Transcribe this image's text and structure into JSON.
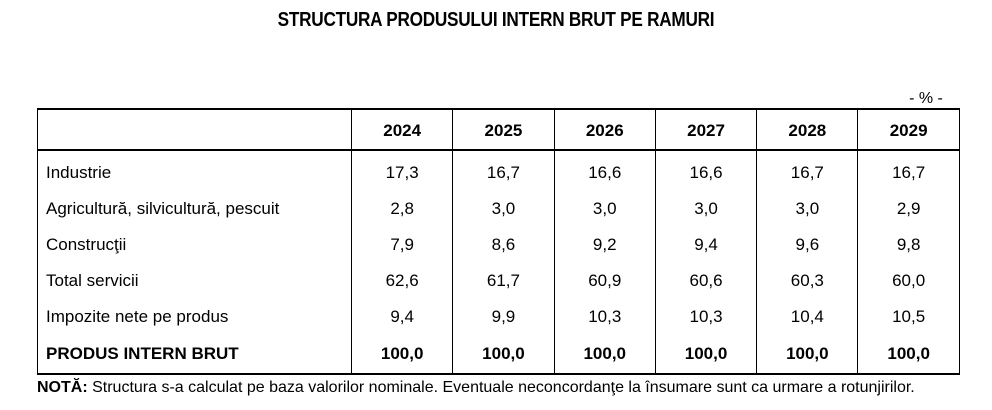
{
  "title": "STRUCTURA PRODUSULUI INTERN BRUT PE RAMURI",
  "unit": "- % -",
  "table": {
    "years": [
      "2024",
      "2025",
      "2026",
      "2027",
      "2028",
      "2029"
    ],
    "rows": [
      {
        "label": "Industrie",
        "values": [
          "17,3",
          "16,7",
          "16,6",
          "16,6",
          "16,7",
          "16,7"
        ]
      },
      {
        "label": "Agricultură, silvicultură, pescuit",
        "values": [
          "2,8",
          "3,0",
          "3,0",
          "3,0",
          "3,0",
          "2,9"
        ]
      },
      {
        "label": "Construcţii",
        "values": [
          "7,9",
          "8,6",
          "9,2",
          "9,4",
          "9,6",
          "9,8"
        ]
      },
      {
        "label": "Total servicii",
        "values": [
          "62,6",
          "61,7",
          "60,9",
          "60,6",
          "60,3",
          "60,0"
        ]
      },
      {
        "label": "Impozite nete pe produs",
        "values": [
          "9,4",
          "9,9",
          "10,3",
          "10,3",
          "10,4",
          "10,5"
        ]
      }
    ],
    "total": {
      "label": "PRODUS INTERN BRUT",
      "values": [
        "100,0",
        "100,0",
        "100,0",
        "100,0",
        "100,0",
        "100,0"
      ]
    }
  },
  "note": {
    "head": "NOTĂ:",
    "text": " Structura s-a calculat pe baza valorilor nominale.  Eventuale neconcordanţe la însumare sunt ca urmare a rotunjirilor."
  }
}
